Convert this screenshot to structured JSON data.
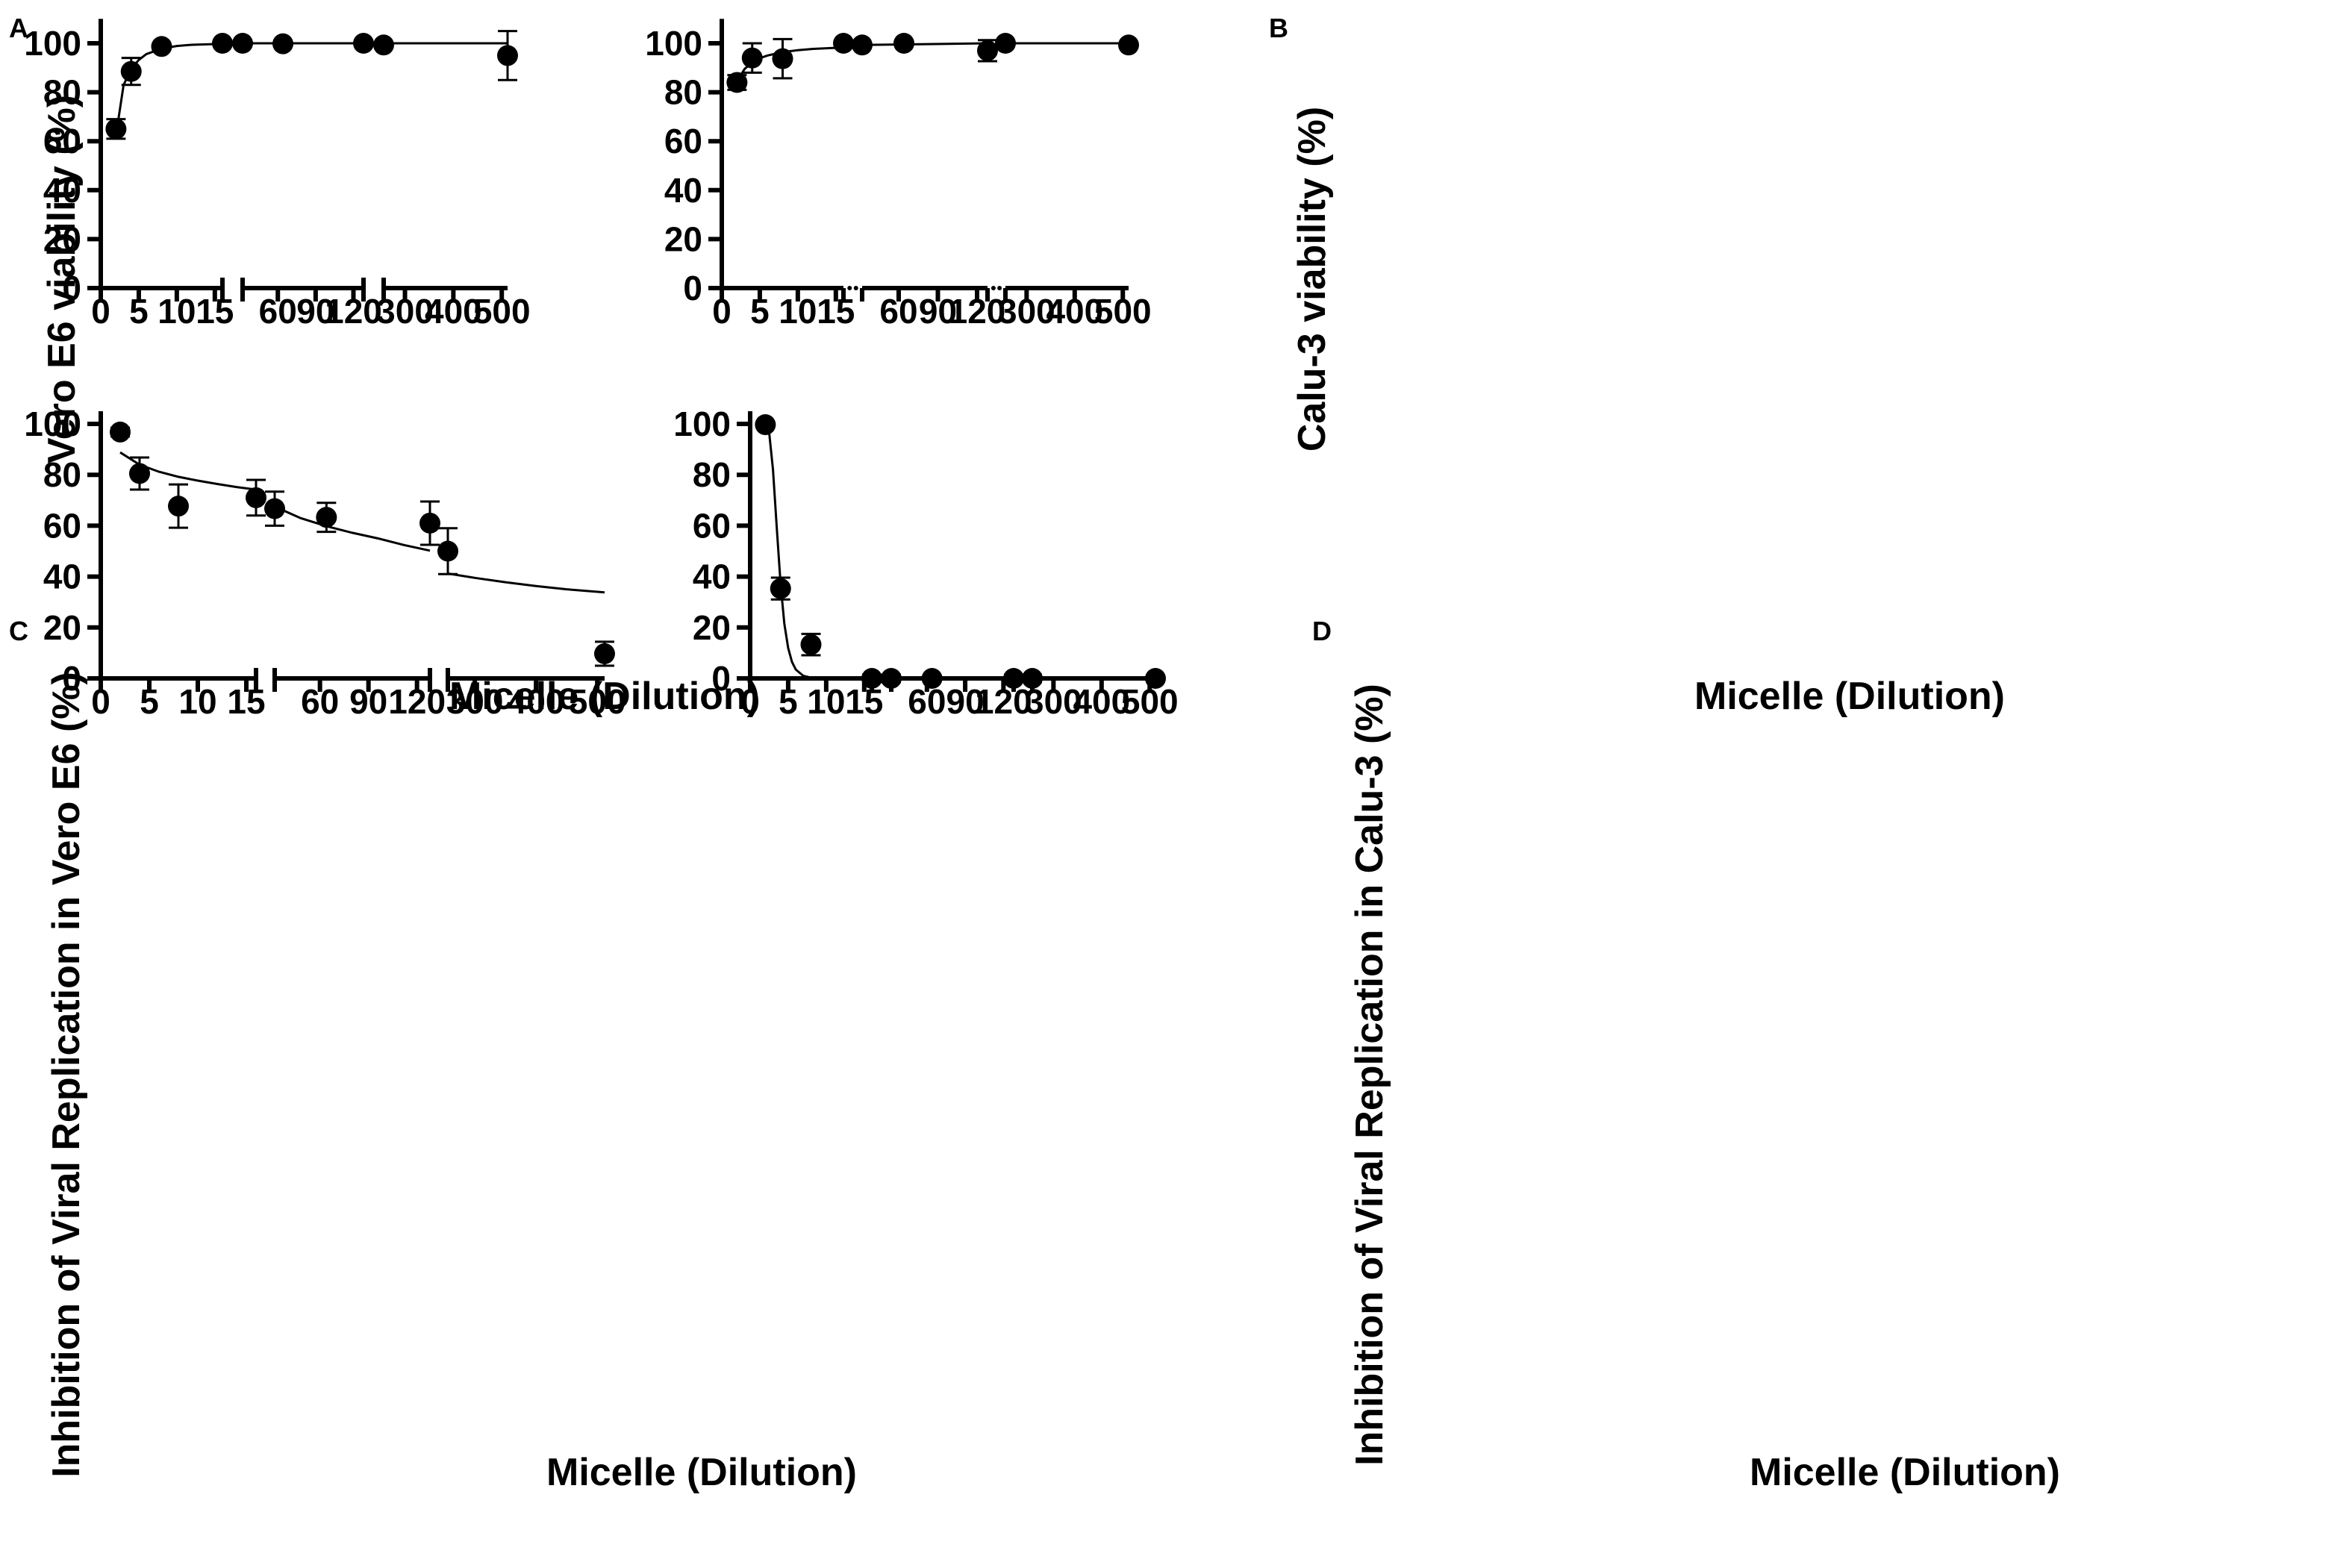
{
  "chart_data": [
    {
      "panel": "A",
      "type": "scatter",
      "ylabel": "Vero E6 viability (%)",
      "xlabel": "Micelle (Dilution)",
      "ylim": [
        0,
        110
      ],
      "yticks": [
        0,
        20,
        40,
        60,
        80,
        100
      ],
      "x_segments": [
        {
          "range": [
            0,
            16
          ],
          "ticks": [
            0,
            5,
            10,
            15
          ]
        },
        {
          "range": [
            32,
            128
          ],
          "ticks": [
            60,
            90,
            120
          ]
        },
        {
          "range": [
            256,
            512
          ],
          "ticks": [
            300,
            400,
            500
          ]
        }
      ],
      "points": [
        {
          "x": 2,
          "y": 65,
          "err": 4
        },
        {
          "x": 4,
          "y": 88.5,
          "err": 5.5
        },
        {
          "x": 8,
          "y": 98.7,
          "err": 0
        },
        {
          "x": 16,
          "y": 100,
          "err": 0
        },
        {
          "x": 32,
          "y": 100,
          "err": 0
        },
        {
          "x": 64,
          "y": 99.8,
          "err": 0
        },
        {
          "x": 128,
          "y": 100,
          "err": 0
        },
        {
          "x": 256,
          "y": 99.3,
          "err": 0
        },
        {
          "x": 512,
          "y": 95,
          "err": 10
        }
      ],
      "fit_segments": [
        [
          [
            2,
            62.5
          ],
          [
            3,
            83
          ],
          [
            4,
            89.5
          ],
          [
            5,
            93.2
          ],
          [
            6,
            95.6
          ],
          [
            8,
            97.8
          ],
          [
            10,
            98.9
          ],
          [
            12,
            99.4
          ],
          [
            16,
            99.8
          ]
        ],
        [
          [
            32,
            100
          ],
          [
            128,
            100
          ]
        ],
        [
          [
            256,
            100
          ],
          [
            512,
            100
          ]
        ]
      ]
    },
    {
      "panel": "B",
      "type": "scatter",
      "ylabel": "Calu-3 viability (%)",
      "xlabel": "Micelle (Dilution)",
      "ylim": [
        0,
        110
      ],
      "yticks": [
        0,
        20,
        40,
        60,
        80,
        100
      ],
      "x_segments": [
        {
          "range": [
            0,
            16
          ],
          "ticks": [
            0,
            5,
            10,
            15
          ]
        },
        {
          "range": [
            32,
            128
          ],
          "ticks": [
            60,
            90,
            120
          ]
        },
        {
          "range": [
            256,
            512
          ],
          "ticks": [
            300,
            400,
            500
          ]
        }
      ],
      "points": [
        {
          "x": 2,
          "y": 84,
          "err": 3
        },
        {
          "x": 4,
          "y": 94,
          "err": 6
        },
        {
          "x": 8,
          "y": 93.7,
          "err": 8
        },
        {
          "x": 16,
          "y": 100,
          "err": 0
        },
        {
          "x": 32,
          "y": 99.3,
          "err": 0
        },
        {
          "x": 64,
          "y": 100,
          "err": 0
        },
        {
          "x": 128,
          "y": 97,
          "err": 4.3
        },
        {
          "x": 256,
          "y": 100,
          "err": 0
        },
        {
          "x": 512,
          "y": 99.3,
          "err": 0
        }
      ],
      "fit_segments": [
        [
          [
            2,
            84.5
          ],
          [
            3,
            89.5
          ],
          [
            4,
            92.2
          ],
          [
            5,
            93.9
          ],
          [
            6,
            95
          ],
          [
            8,
            96.4
          ],
          [
            10,
            97.2
          ],
          [
            12,
            97.7
          ],
          [
            16,
            98.3
          ]
        ],
        [
          [
            32,
            99.3
          ],
          [
            128,
            100
          ]
        ],
        [
          [
            256,
            100
          ],
          [
            512,
            100
          ]
        ]
      ]
    },
    {
      "panel": "C",
      "type": "scatter",
      "ylabel": "Inhibition of Viral Replication in Vero E6 (%)",
      "xlabel": "Micelle (Dilution)",
      "ylim": [
        0,
        105
      ],
      "yticks": [
        0,
        20,
        40,
        60,
        80,
        100
      ],
      "x_segments": [
        {
          "range": [
            0,
            16
          ],
          "ticks": [
            0,
            5,
            10,
            15
          ]
        },
        {
          "range": [
            32,
            128
          ],
          "ticks": [
            60,
            90,
            120
          ]
        },
        {
          "range": [
            256,
            512
          ],
          "ticks": [
            300,
            400,
            500
          ]
        }
      ],
      "points": [
        {
          "x": 2,
          "y": 96.8,
          "err": 1.7
        },
        {
          "x": 4,
          "y": 80.5,
          "err": 6.3
        },
        {
          "x": 8,
          "y": 67.7,
          "err": 8.5
        },
        {
          "x": 16,
          "y": 71,
          "err": 7
        },
        {
          "x": 32,
          "y": 66.7,
          "err": 6.7
        },
        {
          "x": 64,
          "y": 63.3,
          "err": 5.7
        },
        {
          "x": 128,
          "y": 61,
          "err": 8.5
        },
        {
          "x": 256,
          "y": 50,
          "err": 9
        },
        {
          "x": 512,
          "y": 9.7,
          "err": 4.7
        }
      ],
      "fit_segments": [
        [
          [
            2,
            88.8
          ],
          [
            4,
            84
          ],
          [
            6,
            81.2
          ],
          [
            8,
            79.2
          ],
          [
            10,
            77.7
          ],
          [
            12,
            76.4
          ],
          [
            14,
            75.2
          ],
          [
            16,
            74.2
          ]
        ],
        [
          [
            32,
            67.5
          ],
          [
            48,
            63
          ],
          [
            64,
            59.8
          ],
          [
            80,
            57.2
          ],
          [
            96,
            55
          ],
          [
            112,
            52.4
          ],
          [
            128,
            50.2
          ]
        ],
        [
          [
            256,
            41.2
          ],
          [
            300,
            39.5
          ],
          [
            350,
            37.8
          ],
          [
            400,
            36.3
          ],
          [
            450,
            35
          ],
          [
            512,
            33.8
          ]
        ]
      ]
    },
    {
      "panel": "D",
      "type": "scatter",
      "ylabel": "Inhibition of Viral Replication in Calu-3 (%)",
      "xlabel": "Micelle (Dilution)",
      "ylim": [
        0,
        105
      ],
      "yticks": [
        0,
        20,
        40,
        60,
        80,
        100
      ],
      "x_segments": [
        {
          "range": [
            0,
            16
          ],
          "ticks": [
            0,
            5,
            10,
            15
          ]
        },
        {
          "range": [
            32,
            128
          ],
          "ticks": [
            60,
            90,
            120
          ]
        },
        {
          "range": [
            256,
            512
          ],
          "ticks": [
            300,
            400,
            500
          ]
        }
      ],
      "points": [
        {
          "x": 2,
          "y": 99.7,
          "err": 0
        },
        {
          "x": 4,
          "y": 35.3,
          "err": 4.3
        },
        {
          "x": 8,
          "y": 13.3,
          "err": 4.2
        },
        {
          "x": 16,
          "y": 0,
          "err": 1.5
        },
        {
          "x": 32,
          "y": 0,
          "err": 1.5
        },
        {
          "x": 64,
          "y": 0,
          "err": 0
        },
        {
          "x": 128,
          "y": 0,
          "err": 1.5
        },
        {
          "x": 256,
          "y": 0,
          "err": 1.5
        },
        {
          "x": 512,
          "y": 0,
          "err": 0
        }
      ],
      "fit_segments": [
        [
          [
            2,
            100
          ],
          [
            2.5,
            96.5
          ],
          [
            3,
            82
          ],
          [
            3.5,
            59
          ],
          [
            4,
            37
          ],
          [
            4.5,
            21.5
          ],
          [
            5,
            12
          ],
          [
            5.5,
            6.5
          ],
          [
            6,
            3.5
          ],
          [
            7,
            1
          ],
          [
            8,
            0.3
          ],
          [
            9,
            0
          ],
          [
            16,
            0
          ]
        ]
      ]
    }
  ]
}
